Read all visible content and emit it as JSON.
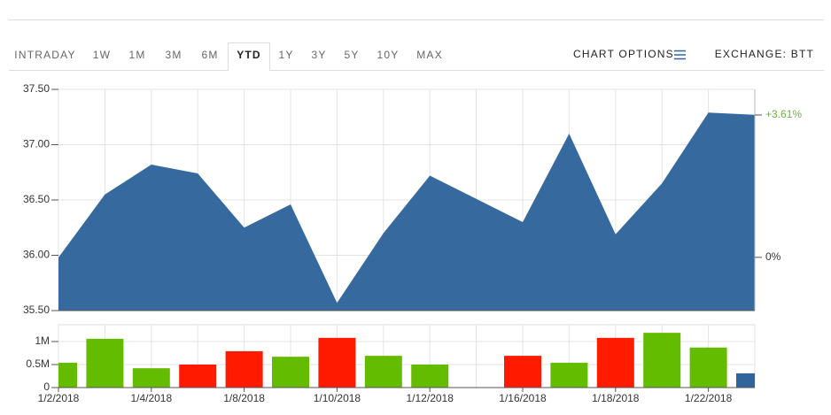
{
  "toolbar": {
    "tabs": [
      "INTRADAY",
      "1W",
      "1M",
      "3M",
      "6M",
      "YTD",
      "1Y",
      "3Y",
      "5Y",
      "10Y",
      "MAX"
    ],
    "selected_tab": "YTD",
    "chart_options": "CHART OPTIONS",
    "exchange": "EXCHANGE: BTT"
  },
  "chart_data": [
    {
      "type": "area",
      "color": "#30659c",
      "grid": true,
      "categories": [
        "1/2/2018",
        null,
        "1/4/2018",
        null,
        "1/8/2018",
        null,
        "1/10/2018",
        null,
        "1/12/2018",
        null,
        "1/16/2018",
        null,
        "1/18/2018",
        null,
        "1/22/2018",
        null
      ],
      "values": [
        35.98,
        36.55,
        36.82,
        36.74,
        36.25,
        36.46,
        35.57,
        36.2,
        36.72,
        36.51,
        36.3,
        37.1,
        36.19,
        36.65,
        37.29,
        37.27
      ],
      "ylim": [
        35.5,
        37.5
      ],
      "yticks": [
        {
          "value": 35.5,
          "label": "35.50"
        },
        {
          "value": 36,
          "label": "36.00"
        },
        {
          "value": 36.5,
          "label": "36.50"
        },
        {
          "value": 37,
          "label": "37.00"
        },
        {
          "value": 37.5,
          "label": "37.50"
        }
      ],
      "y2lim": [
        -1.35,
        4.26
      ],
      "y2ticks": [
        {
          "value": 0,
          "label": "0%",
          "color": "#333333"
        },
        {
          "value": 3.61,
          "label": "+3.61%",
          "color": "#6cb33e"
        }
      ]
    },
    {
      "type": "bar",
      "grid": true,
      "categories": [
        "1/2/2018",
        null,
        "1/4/2018",
        null,
        "1/8/2018",
        null,
        "1/10/2018",
        null,
        "1/12/2018",
        null,
        "1/16/2018",
        null,
        "1/18/2018",
        null,
        "1/22/2018",
        null
      ],
      "values": [
        540000,
        1060000,
        420000,
        500000,
        790000,
        670000,
        1080000,
        690000,
        500000,
        null,
        690000,
        540000,
        1080000,
        1190000,
        870000,
        310000
      ],
      "colors": [
        "#64bc00",
        "#64bc00",
        "#64bc00",
        "#ff1a00",
        "#ff1a00",
        "#64bc00",
        "#ff1a00",
        "#64bc00",
        "#64bc00",
        null,
        "#ff1a00",
        "#64bc00",
        "#ff1a00",
        "#64bc00",
        "#64bc00",
        "#30659c"
      ],
      "ylim": [
        0,
        1365000
      ],
      "yticks": [
        0,
        {
          "value": 500000,
          "label": "0.5M"
        },
        {
          "value": 1000000,
          "label": "1M"
        }
      ]
    }
  ]
}
